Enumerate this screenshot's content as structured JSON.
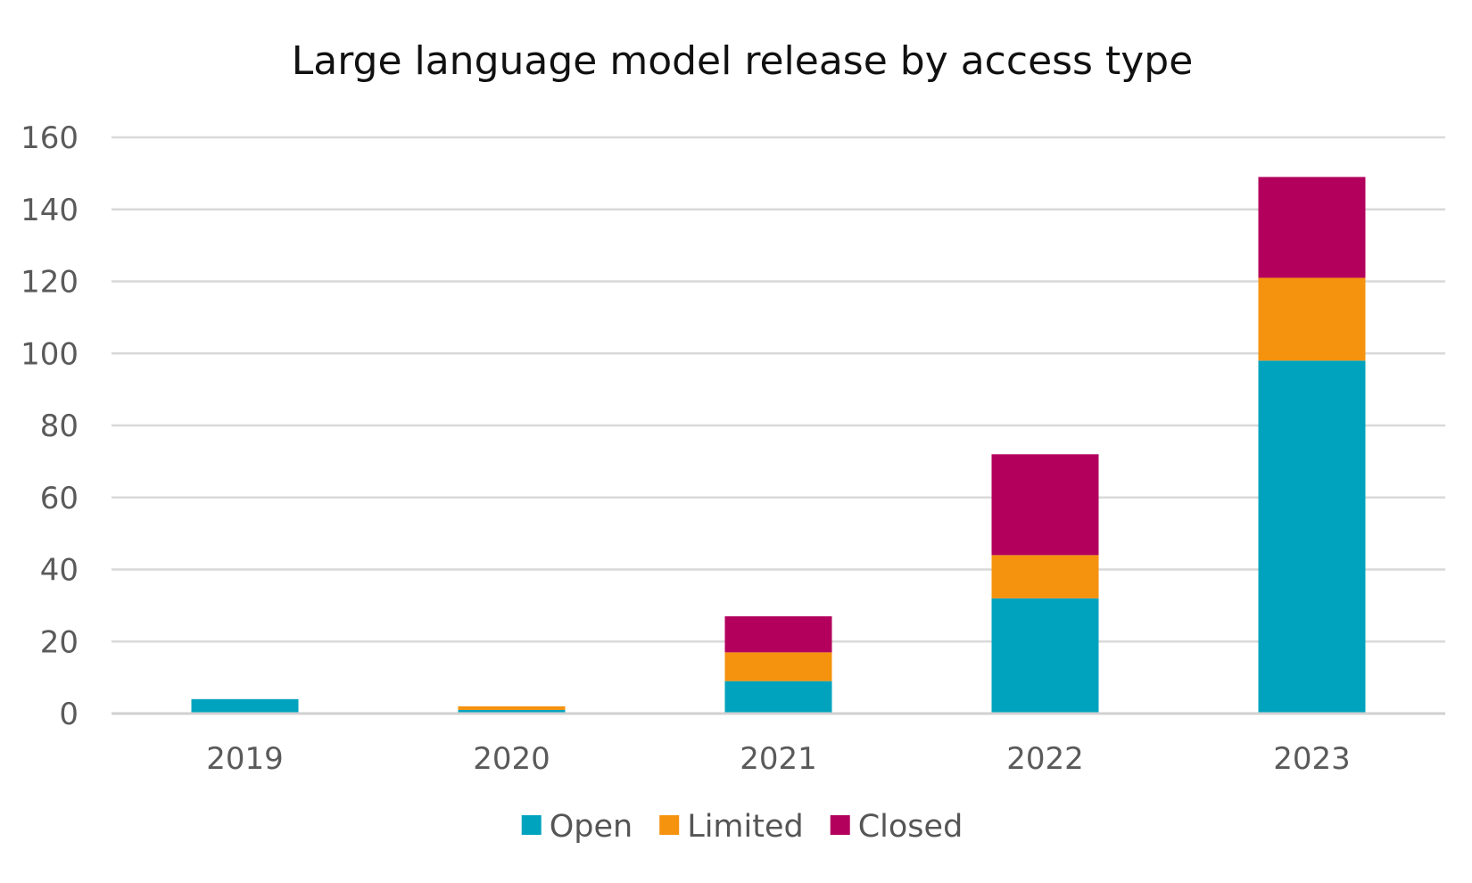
{
  "chart_data": {
    "type": "bar",
    "stacked": true,
    "title": "Large language model release by  access type",
    "xlabel": "",
    "ylabel": "",
    "categories": [
      "2019",
      "2020",
      "2021",
      "2022",
      "2023"
    ],
    "series": [
      {
        "name": "Open",
        "color": "#00a3be",
        "values": [
          4,
          1,
          9,
          32,
          98
        ]
      },
      {
        "name": "Limited",
        "color": "#f5920e",
        "values": [
          0,
          1,
          8,
          12,
          23
        ]
      },
      {
        "name": "Closed",
        "color": "#b3005d",
        "values": [
          0,
          0,
          10,
          28,
          28
        ]
      }
    ],
    "ylim": [
      0,
      160
    ],
    "yticks": [
      0,
      20,
      40,
      60,
      80,
      100,
      120,
      140,
      160
    ],
    "grid": true,
    "legend_position": "bottom"
  }
}
